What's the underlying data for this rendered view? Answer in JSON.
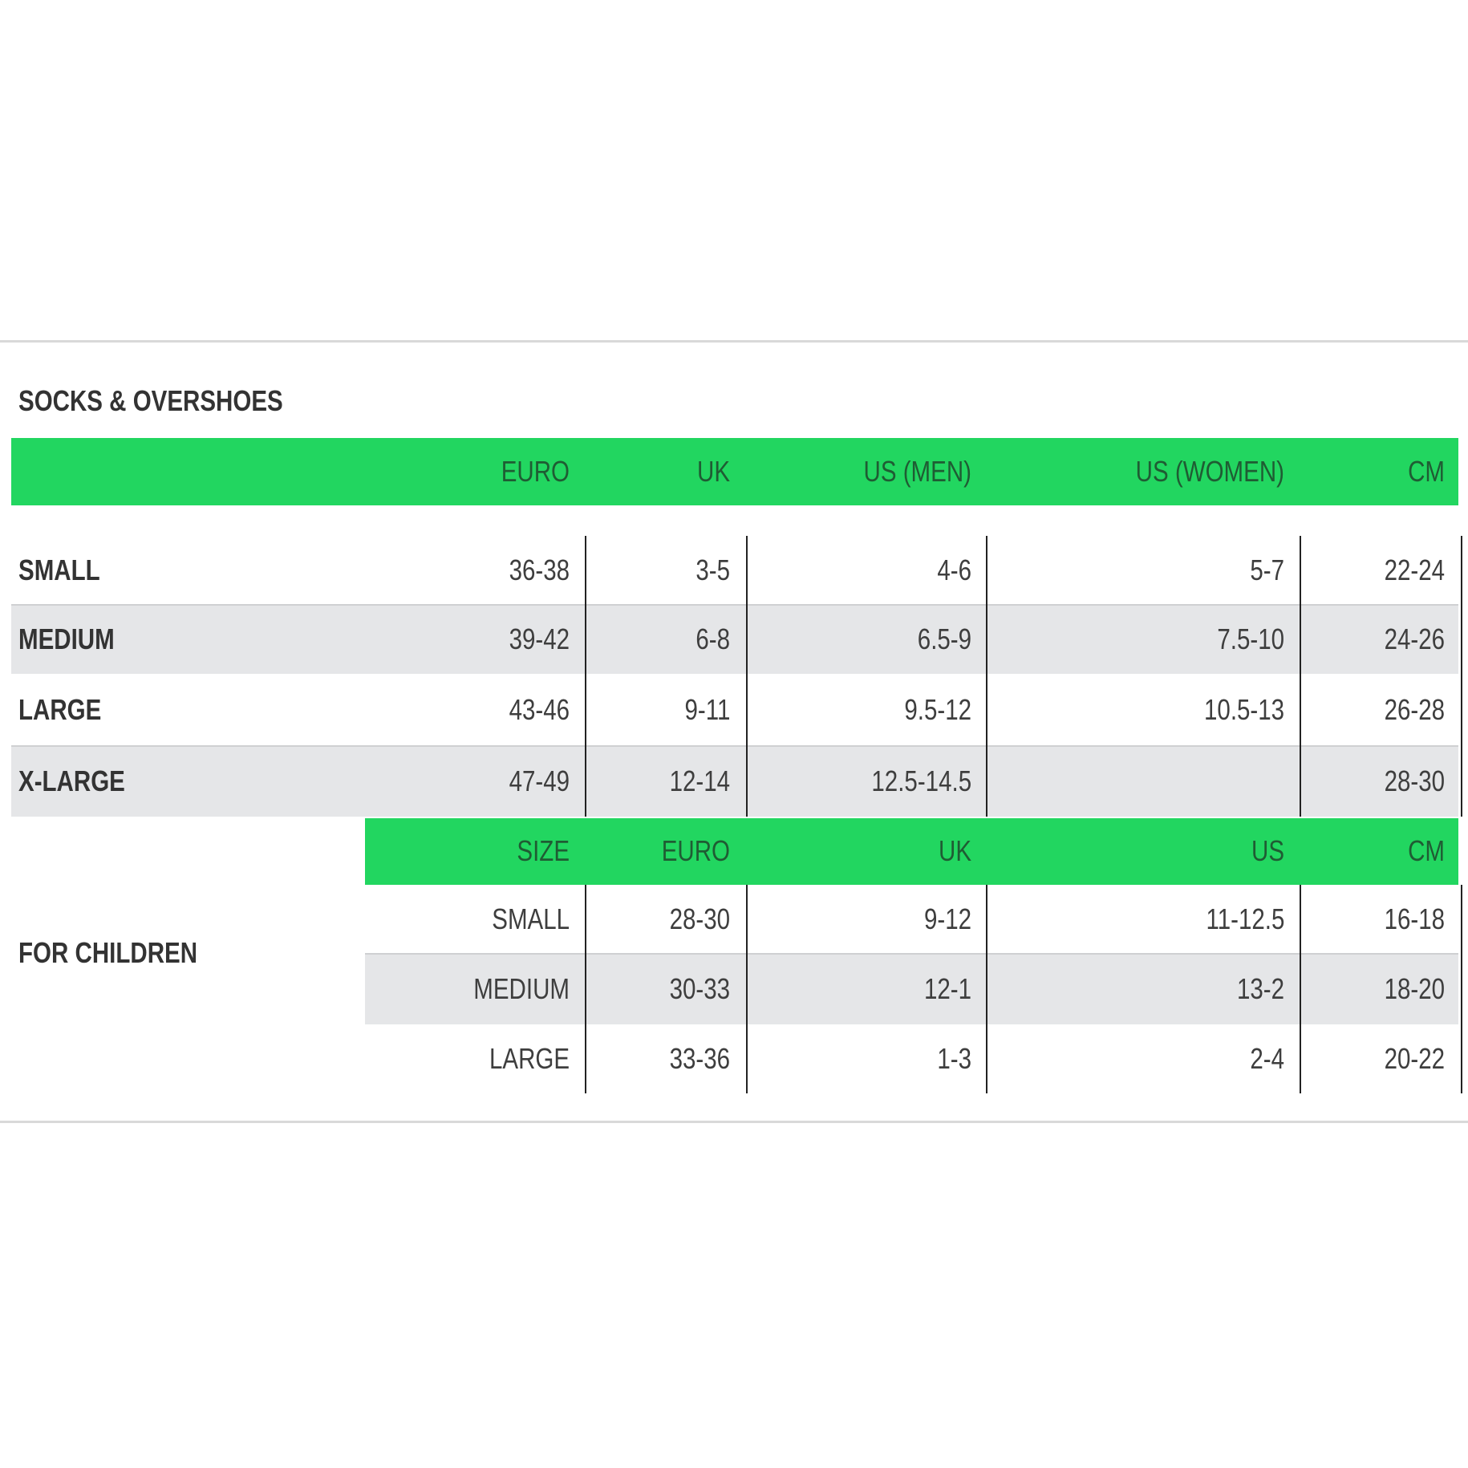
{
  "title": "SOCKS & OVERSHOES",
  "colors": {
    "header_green": "#22d660",
    "stripe_gray": "#e5e6e8",
    "text": "#3e3e3e"
  },
  "adult": {
    "headers": [
      "EURO",
      "UK",
      "US (MEN)",
      "US (WOMEN)",
      "CM"
    ],
    "rows": [
      {
        "size": "SMALL",
        "values": [
          "36-38",
          "3-5",
          "4-6",
          "5-7",
          "22-24"
        ]
      },
      {
        "size": "MEDIUM",
        "values": [
          "39-42",
          "6-8",
          "6.5-9",
          "7.5-10",
          "24-26"
        ]
      },
      {
        "size": "LARGE",
        "values": [
          "43-46",
          "9-11",
          "9.5-12",
          "10.5-13",
          "26-28"
        ]
      },
      {
        "size": "X-LARGE",
        "values": [
          "47-49",
          "12-14",
          "12.5-14.5",
          "",
          "28-30"
        ]
      }
    ]
  },
  "children": {
    "label": "FOR CHILDREN",
    "headers": [
      "SIZE",
      "EURO",
      "UK",
      "US",
      "CM"
    ],
    "rows": [
      {
        "values": [
          "SMALL",
          "28-30",
          "9-12",
          "11-12.5",
          "16-18"
        ]
      },
      {
        "values": [
          "MEDIUM",
          "30-33",
          "12-1",
          "13-2",
          "18-20"
        ]
      },
      {
        "values": [
          "LARGE",
          "33-36",
          "1-3",
          "2-4",
          "20-22"
        ]
      }
    ]
  }
}
